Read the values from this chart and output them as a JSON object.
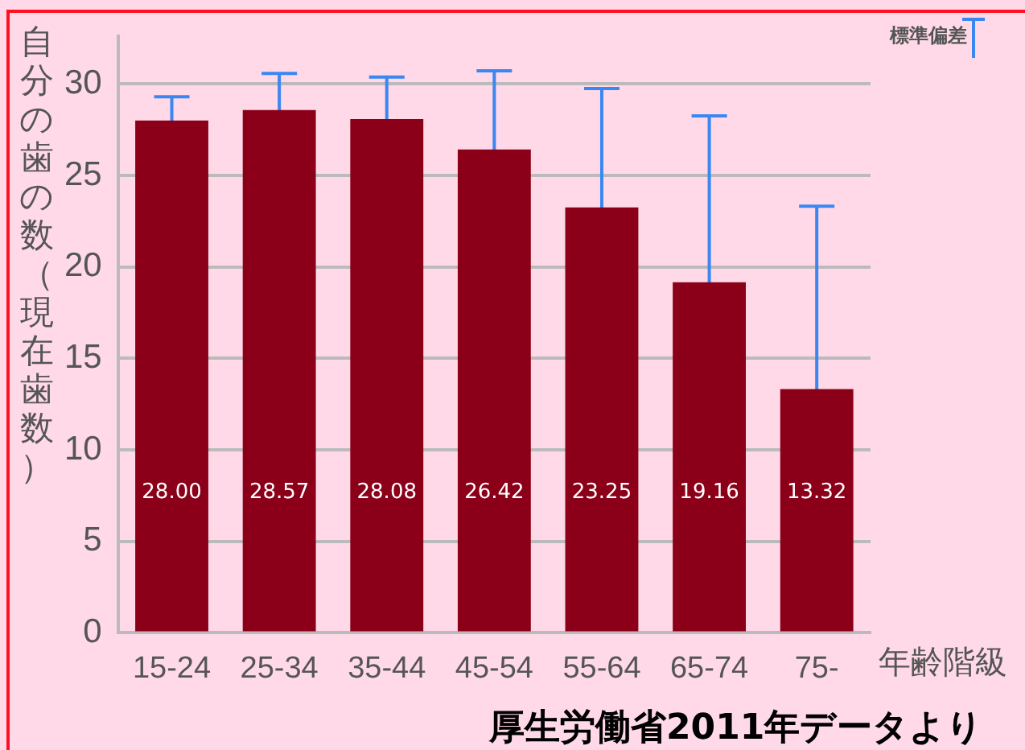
{
  "chart_data": {
    "type": "bar",
    "ylabel": "自分の歯の数（現在歯数）",
    "xlabel": "年齢階級",
    "categories": [
      "15-24",
      "25-34",
      "35-44",
      "45-54",
      "55-64",
      "65-74",
      "75-"
    ],
    "values": [
      28.0,
      28.57,
      28.08,
      26.42,
      23.25,
      19.16,
      13.32
    ],
    "errors": [
      1.3,
      2.0,
      2.3,
      4.3,
      6.5,
      9.1,
      10.0
    ],
    "value_labels": [
      "28.00",
      "28.57",
      "28.08",
      "26.42",
      "23.25",
      "19.16",
      "13.32"
    ],
    "color": "#8b0018",
    "ylim": [
      0,
      32.6
    ],
    "yticks": [
      0,
      5,
      10,
      15,
      20,
      25,
      30
    ],
    "grid": "y",
    "legend_title": "標準偏差",
    "annotations": [
      "厚生労働省2011年データより"
    ]
  }
}
